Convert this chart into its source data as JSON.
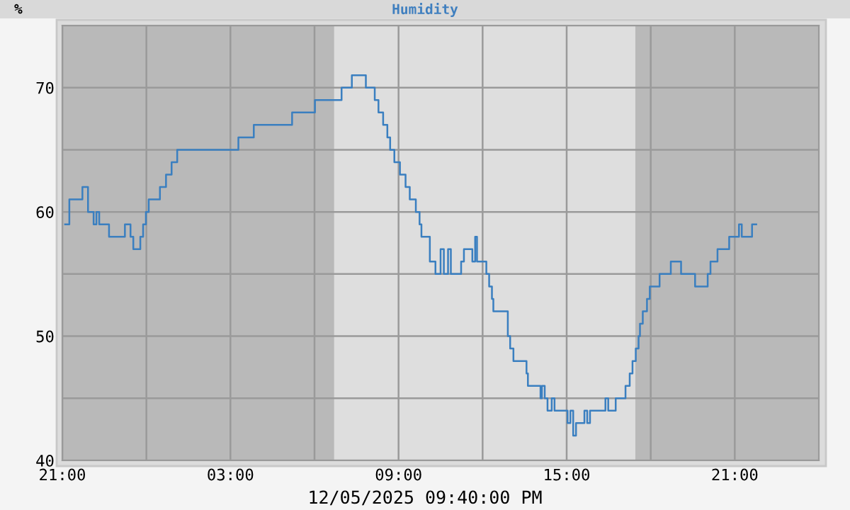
{
  "chart_data": {
    "type": "step",
    "title": "Humidity",
    "ylabel": "%",
    "xlabel": "12/05/2025 09:40:00 PM",
    "x": [
      "2025-12-04T21:06",
      "2025-12-04T21:15",
      "2025-12-04T21:43",
      "2025-12-04T21:55",
      "2025-12-04T22:07",
      "2025-12-04T22:13",
      "2025-12-04T22:19",
      "2025-12-04T22:40",
      "2025-12-04T23:14",
      "2025-12-04T23:26",
      "2025-12-04T23:32",
      "2025-12-04T23:47",
      "2025-12-04T23:53",
      "2025-12-04T23:59",
      "2025-12-05T00:05",
      "2025-12-05T00:29",
      "2025-12-05T00:42",
      "2025-12-05T00:54",
      "2025-12-05T01:06",
      "2025-12-05T03:17",
      "2025-12-05T03:50",
      "2025-12-05T05:12",
      "2025-12-05T06:01",
      "2025-12-05T06:58",
      "2025-12-05T07:20",
      "2025-12-05T07:50",
      "2025-12-05T08:09",
      "2025-12-05T08:17",
      "2025-12-05T08:27",
      "2025-12-05T08:36",
      "2025-12-05T08:42",
      "2025-12-05T08:51",
      "2025-12-05T09:03",
      "2025-12-05T09:15",
      "2025-12-05T09:24",
      "2025-12-05T09:37",
      "2025-12-05T09:45",
      "2025-12-05T09:49",
      "2025-12-05T10:07",
      "2025-12-05T10:19",
      "2025-12-05T10:30",
      "2025-12-05T10:37",
      "2025-12-05T10:46",
      "2025-12-05T10:52",
      "2025-12-05T11:14",
      "2025-12-05T11:20",
      "2025-12-05T11:38",
      "2025-12-05T11:44",
      "2025-12-05T11:48",
      "2025-12-05T12:08",
      "2025-12-05T12:14",
      "2025-12-05T12:20",
      "2025-12-05T12:23",
      "2025-12-05T12:54",
      "2025-12-05T12:59",
      "2025-12-05T13:06",
      "2025-12-05T13:34",
      "2025-12-05T13:37",
      "2025-12-05T14:04",
      "2025-12-05T14:07",
      "2025-12-05T14:13",
      "2025-12-05T14:19",
      "2025-12-05T14:28",
      "2025-12-05T14:34",
      "2025-12-05T15:02",
      "2025-12-05T15:08",
      "2025-12-05T15:14",
      "2025-12-05T15:20",
      "2025-12-05T15:38",
      "2025-12-05T15:44",
      "2025-12-05T15:50",
      "2025-12-05T16:23",
      "2025-12-05T16:29",
      "2025-12-05T16:45",
      "2025-12-05T17:06",
      "2025-12-05T17:15",
      "2025-12-05T17:21",
      "2025-12-05T17:28",
      "2025-12-05T17:34",
      "2025-12-05T17:37",
      "2025-12-05T17:43",
      "2025-12-05T17:52",
      "2025-12-05T17:58",
      "2025-12-05T18:19",
      "2025-12-05T18:43",
      "2025-12-05T19:05",
      "2025-12-05T19:35",
      "2025-12-05T20:02",
      "2025-12-05T20:08",
      "2025-12-05T20:23",
      "2025-12-05T20:48",
      "2025-12-05T21:09",
      "2025-12-05T21:15",
      "2025-12-05T21:37",
      "2025-12-05T21:46"
    ],
    "series": [
      {
        "color": "#3a7fc0",
        "values": [
          59,
          61,
          62,
          60,
          59,
          60,
          59,
          58,
          59,
          58,
          57,
          58,
          59,
          60,
          61,
          62,
          63,
          64,
          65,
          66,
          67,
          68,
          69,
          70,
          71,
          70,
          69,
          68,
          67,
          66,
          65,
          64,
          63,
          62,
          61,
          60,
          59,
          58,
          56,
          55,
          57,
          55,
          57,
          55,
          56,
          57,
          56,
          58,
          56,
          55,
          54,
          53,
          52,
          50,
          49,
          48,
          47,
          46,
          45,
          46,
          45,
          44,
          45,
          44,
          43,
          44,
          42,
          43,
          44,
          43,
          44,
          45,
          44,
          45,
          46,
          47,
          48,
          49,
          50,
          51,
          52,
          53,
          54,
          55,
          56,
          55,
          54,
          55,
          56,
          57,
          58,
          59,
          58,
          59,
          59
        ]
      }
    ],
    "xlim": [
      "2025-12-04T21:00",
      "2025-12-06T00:00"
    ],
    "xticks": [
      {
        "value": "2025-12-04T21:00",
        "label": "21:00"
      },
      {
        "value": "2025-12-05T00:00",
        "label": null
      },
      {
        "value": "2025-12-05T03:00",
        "label": "03:00"
      },
      {
        "value": "2025-12-05T06:00",
        "label": null
      },
      {
        "value": "2025-12-05T09:00",
        "label": "09:00"
      },
      {
        "value": "2025-12-05T12:00",
        "label": null
      },
      {
        "value": "2025-12-05T15:00",
        "label": "15:00"
      },
      {
        "value": "2025-12-05T18:00",
        "label": null
      },
      {
        "value": "2025-12-05T21:00",
        "label": "21:00"
      }
    ],
    "ylim": [
      40,
      75
    ],
    "yticks": [
      40,
      {
        "value": 45,
        "label": null
      },
      50,
      {
        "value": 55,
        "label": null
      },
      60,
      {
        "value": 65,
        "label": null
      },
      70,
      {
        "value": 75,
        "label": null
      }
    ],
    "bands": [
      {
        "axis": "x",
        "from": "2025-12-05T06:42",
        "to": "2025-12-05T17:27",
        "color": "#dedede"
      }
    ],
    "grid": true,
    "legend": false,
    "marker": "none",
    "line_style": "solid"
  }
}
